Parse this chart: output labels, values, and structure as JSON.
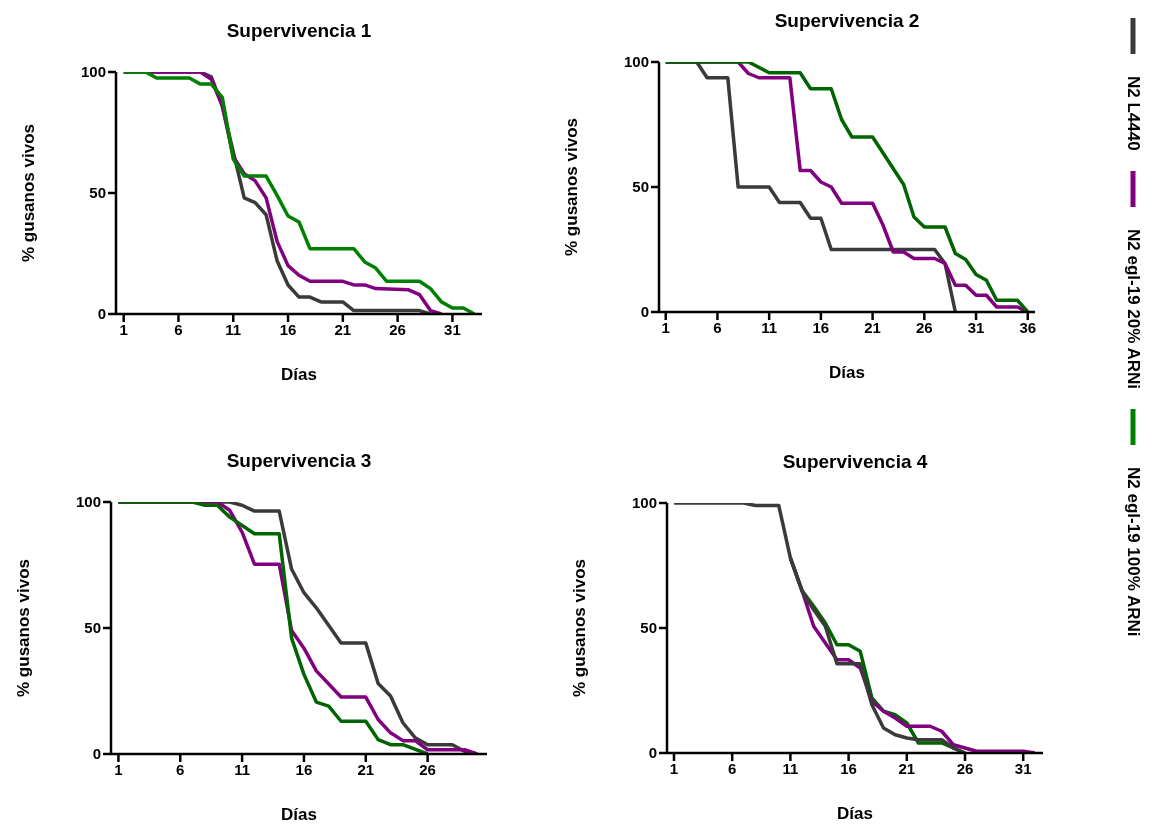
{
  "chart_data": [
    {
      "type": "line",
      "title": "Supervivencia 1",
      "xlabel": "Días",
      "ylabel": "% gusanos vivos",
      "xlim": [
        0.3,
        33.7
      ],
      "xticks": [
        1,
        6,
        11,
        16,
        21,
        26,
        31
      ],
      "ylim": [
        0,
        100
      ],
      "yticks": [
        0,
        50,
        100
      ],
      "legend": "right",
      "series": [
        {
          "name": "N2 L4440",
          "color": "#3a3a3a",
          "x": [
            1,
            8,
            9,
            10,
            11,
            12,
            13,
            14,
            15,
            16,
            17,
            18,
            19,
            21,
            22,
            28,
            29
          ],
          "values": [
            100,
            100,
            98,
            86,
            67,
            48,
            46,
            41,
            22,
            12,
            7,
            7,
            5,
            5,
            1.4,
            1.4,
            0
          ]
        },
        {
          "name": "N2 egl-19 20% ARNi",
          "color": "#800080",
          "x": [
            1,
            8,
            9,
            10,
            11,
            12,
            13,
            14,
            15,
            16,
            17,
            18,
            21,
            22,
            23,
            24,
            27,
            28,
            29,
            30
          ],
          "values": [
            100,
            100,
            97,
            86,
            65,
            58,
            55,
            48,
            30,
            20,
            16,
            13.5,
            13.5,
            12,
            12,
            10.5,
            10,
            8,
            1.4,
            0
          ]
        },
        {
          "name": "N2 egl-19 100% ARNi",
          "color": "#008000",
          "x": [
            1,
            3,
            4,
            7,
            8,
            9,
            10,
            11,
            12,
            14,
            15,
            16,
            17,
            18,
            22,
            23,
            24,
            25,
            28,
            29,
            30,
            31,
            32,
            33
          ],
          "values": [
            100,
            100,
            97.5,
            97.5,
            95,
            95,
            89.5,
            64,
            57,
            57,
            49,
            40.5,
            38,
            27,
            27,
            21.5,
            19,
            13.5,
            13.5,
            10.5,
            5,
            2.5,
            2.5,
            0
          ]
        }
      ]
    },
    {
      "type": "line",
      "title": "Supervivencia 2",
      "xlabel": "Días",
      "ylabel": "% gusanos vivos",
      "xlim": [
        0.35,
        36.7
      ],
      "xticks": [
        1,
        6,
        11,
        16,
        21,
        26,
        31,
        36
      ],
      "ylim": [
        0,
        100
      ],
      "yticks": [
        0,
        50,
        100
      ],
      "series": [
        {
          "color": "#3a3a3a",
          "x": [
            1,
            4,
            5,
            7,
            8,
            11,
            12,
            14,
            15,
            16,
            17,
            27,
            28,
            29
          ],
          "values": [
            100,
            100,
            93.7,
            93.7,
            50,
            50,
            43.8,
            43.8,
            37.5,
            37.5,
            25,
            25,
            19.4,
            0
          ]
        },
        {
          "color": "#800080",
          "x": [
            1,
            8,
            9,
            10,
            13,
            14,
            15,
            16,
            17,
            18,
            21,
            22,
            23,
            24,
            25,
            27,
            28,
            29,
            30,
            31,
            32,
            33,
            35,
            36
          ],
          "values": [
            100,
            100,
            95.4,
            93.7,
            93.7,
            56.6,
            56.6,
            52,
            50,
            43.5,
            43.5,
            34.8,
            24,
            24,
            21.4,
            21.4,
            19.4,
            10.7,
            10.7,
            6.7,
            6.7,
            2,
            2,
            0
          ]
        },
        {
          "color": "#006400",
          "x": [
            1,
            9,
            11,
            14,
            15,
            17,
            18,
            19,
            21,
            24,
            25,
            26,
            28,
            29,
            30,
            31,
            32,
            33,
            35,
            36
          ],
          "values": [
            100,
            100,
            95.7,
            95.7,
            89.3,
            89.3,
            77,
            70,
            70,
            51,
            38,
            34,
            34,
            23.4,
            21,
            15,
            12.7,
            4.7,
            4.7,
            0
          ]
        }
      ]
    },
    {
      "type": "line",
      "title": "Supervivencia 3",
      "xlabel": "Días",
      "ylabel": "% gusanos vivos",
      "xlim": [
        0.4,
        30.8
      ],
      "xticks": [
        1,
        6,
        11,
        16,
        21,
        26
      ],
      "ylim": [
        0,
        100
      ],
      "yticks": [
        0,
        50,
        100
      ],
      "series": [
        {
          "color": "#3a3a3a",
          "x": [
            1,
            10,
            11,
            12,
            14,
            15,
            16,
            17,
            19,
            21,
            22,
            23,
            24,
            25,
            26,
            28,
            29,
            30
          ],
          "values": [
            100,
            100,
            98.7,
            96.4,
            96.4,
            73.4,
            64,
            58,
            44,
            44,
            28,
            23,
            12.4,
            6.4,
            3.7,
            3.7,
            1,
            0
          ]
        },
        {
          "color": "#800080",
          "x": [
            1,
            9,
            10,
            11,
            12,
            14,
            15,
            16,
            17,
            19,
            21,
            22,
            23,
            24,
            25,
            26,
            29,
            30
          ],
          "values": [
            100,
            100,
            96.7,
            88,
            75.3,
            75.3,
            49,
            42,
            33,
            22.6,
            22.6,
            13.7,
            8.4,
            5.3,
            5.3,
            1.7,
            1.7,
            0
          ]
        },
        {
          "color": "#006400",
          "x": [
            1,
            7,
            8,
            9,
            10,
            12,
            14,
            15,
            16,
            17,
            18,
            19,
            21,
            22,
            23,
            24,
            26
          ],
          "values": [
            100,
            100,
            98.7,
            98.7,
            94,
            87.4,
            87.4,
            46,
            31.6,
            20.6,
            19,
            13,
            13,
            5.7,
            3.7,
            3.7,
            0
          ]
        }
      ]
    },
    {
      "type": "line",
      "title": "Supervivencia 4",
      "xlabel": "Días",
      "ylabel": "% gusanos vivos",
      "xlim": [
        0.4,
        32.7
      ],
      "xticks": [
        1,
        6,
        11,
        16,
        21,
        26,
        31
      ],
      "ylim": [
        0,
        100
      ],
      "yticks": [
        0,
        50,
        100
      ],
      "series": [
        {
          "color": "#006400",
          "x": [
            11,
            12,
            13,
            14,
            15,
            16,
            17,
            18,
            19,
            20,
            21,
            22,
            24,
            25,
            26
          ],
          "values": [
            78,
            65,
            58.7,
            52,
            43.3,
            43.3,
            40.7,
            22,
            16.7,
            15.3,
            12,
            4,
            4,
            2,
            0
          ]
        },
        {
          "color": "#800080",
          "x": [
            11,
            12,
            13,
            14,
            15,
            16,
            17,
            18,
            19,
            20,
            21,
            23,
            24,
            25,
            26,
            27,
            31,
            32
          ],
          "values": [
            78,
            65,
            50.7,
            44,
            37.3,
            37.3,
            34,
            20.7,
            16.7,
            14,
            10.7,
            10.7,
            8.7,
            3.3,
            2,
            0.7,
            0.7,
            0
          ]
        },
        {
          "color": "#3a3a3a",
          "x": [
            1,
            7,
            8,
            10,
            11,
            12,
            13,
            14,
            15,
            17,
            18,
            19,
            20,
            21,
            22,
            24,
            25,
            26
          ],
          "values": [
            100,
            100,
            99,
            99,
            78,
            64.7,
            57.3,
            50.7,
            35.7,
            35.7,
            19.3,
            10,
            7.3,
            6,
            5.3,
            5.3,
            2,
            0
          ]
        }
      ]
    }
  ]
}
